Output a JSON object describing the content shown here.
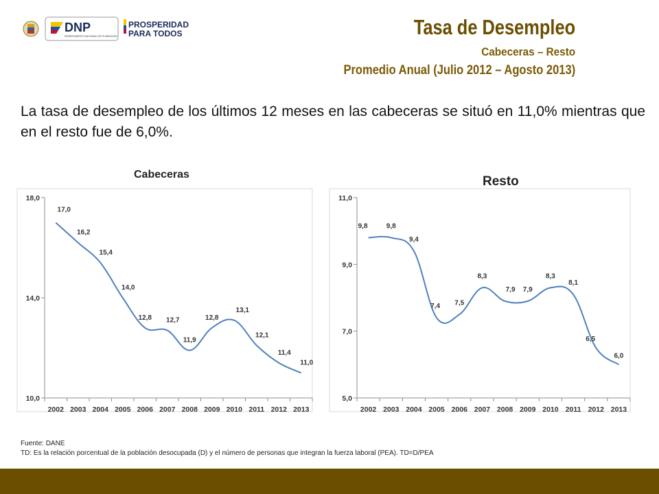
{
  "header": {
    "logo_text_1": "DNP",
    "logo_text_1_sub": "DEPARTAMENTO NACIONAL DE PLANEACIÓN",
    "logo_text_2_line1": "PROSPERIDAD",
    "logo_text_2_line2": "PARA TODOS",
    "title": "Tasa de Desempleo",
    "subtitle1": "Cabeceras – Resto",
    "subtitle2": "Promedio Anual (Julio 2012 – Agosto 2013)"
  },
  "summary": "La tasa de desempleo de los últimos 12 meses en las cabeceras se situó en 11,0% mientras que en el resto fue de 6,0%.",
  "chart_titles": {
    "cabeceras": "Cabeceras",
    "resto": "Resto"
  },
  "footer": {
    "source": "Fuente: DANE",
    "note": "TD: Es la relación porcentual de la población desocupada (D) y el número de personas que integran la fuerza laboral (PEA). TD=D/PEA"
  },
  "colors": {
    "brand": "#6b4e00",
    "line": "#4f81bd",
    "axis": "#8c8c8c"
  },
  "chart_data": [
    {
      "type": "line",
      "title": "Cabeceras",
      "categories": [
        "2002",
        "2003",
        "2004",
        "2005",
        "2006",
        "2007",
        "2008",
        "2009",
        "2010",
        "2011",
        "2012",
        "2013"
      ],
      "values": [
        17.0,
        16.2,
        15.4,
        14.0,
        12.8,
        12.7,
        11.9,
        12.8,
        13.1,
        12.1,
        11.4,
        11.0
      ],
      "value_labels": [
        "17,0",
        "16,2",
        "15,4",
        "14,0",
        "12,8",
        "12,7",
        "11,9",
        "12,8",
        "13,1",
        "12,1",
        "11,4",
        "11,0"
      ],
      "ylim": [
        10,
        18
      ],
      "yticks": [
        10,
        14,
        18
      ],
      "ytick_labels": [
        "10,0",
        "14,0",
        "18,0"
      ],
      "grid": false,
      "smooth": true
    },
    {
      "type": "line",
      "title": "Resto",
      "categories": [
        "2002",
        "2003",
        "2004",
        "2005",
        "2006",
        "2007",
        "2008",
        "2009",
        "2010",
        "2011",
        "2012",
        "2013"
      ],
      "values": [
        9.8,
        9.8,
        9.4,
        7.4,
        7.5,
        8.3,
        7.9,
        7.9,
        8.3,
        8.1,
        6.5,
        6.0
      ],
      "value_labels": [
        "9,8",
        "9,8",
        "9,4",
        "7,4",
        "7,5",
        "8,3",
        "7,9",
        "7,9",
        "8,3",
        "8,1",
        "6,5",
        "6,0"
      ],
      "ylim": [
        5,
        11
      ],
      "yticks": [
        5,
        7,
        9,
        11
      ],
      "ytick_labels": [
        "5,0",
        "7,0",
        "9,0",
        "11,0"
      ],
      "grid": false,
      "smooth": true
    }
  ]
}
